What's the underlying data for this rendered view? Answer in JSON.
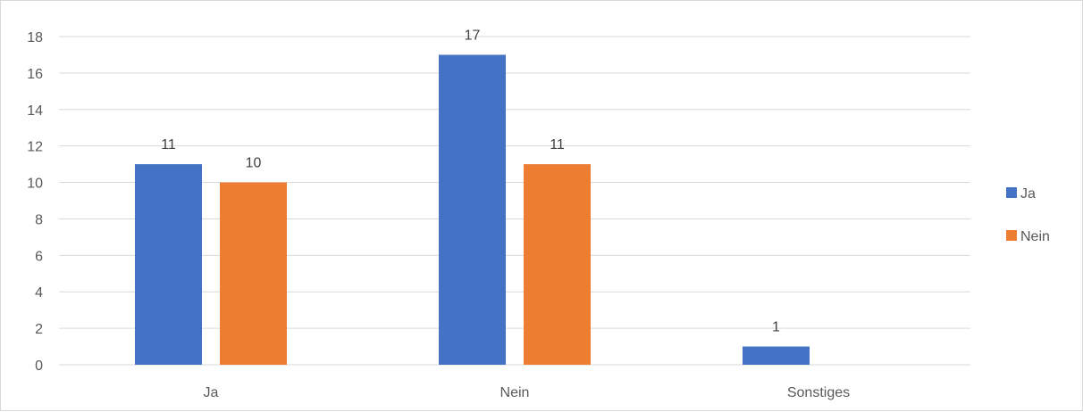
{
  "chart_data": {
    "type": "bar",
    "categories": [
      "Ja",
      "Nein",
      "Sonstiges"
    ],
    "series": [
      {
        "name": "Ja",
        "values": [
          11,
          17,
          1
        ],
        "color": "#4472C4"
      },
      {
        "name": "Nein",
        "values": [
          10,
          11,
          null
        ],
        "color": "#ED7D31"
      }
    ],
    "ylim": [
      0,
      18
    ],
    "yticks": [
      "0",
      "2",
      "4",
      "6",
      "8",
      "10",
      "12",
      "14",
      "16",
      "18"
    ],
    "grid": true,
    "legend": "right",
    "data_labels": true
  }
}
